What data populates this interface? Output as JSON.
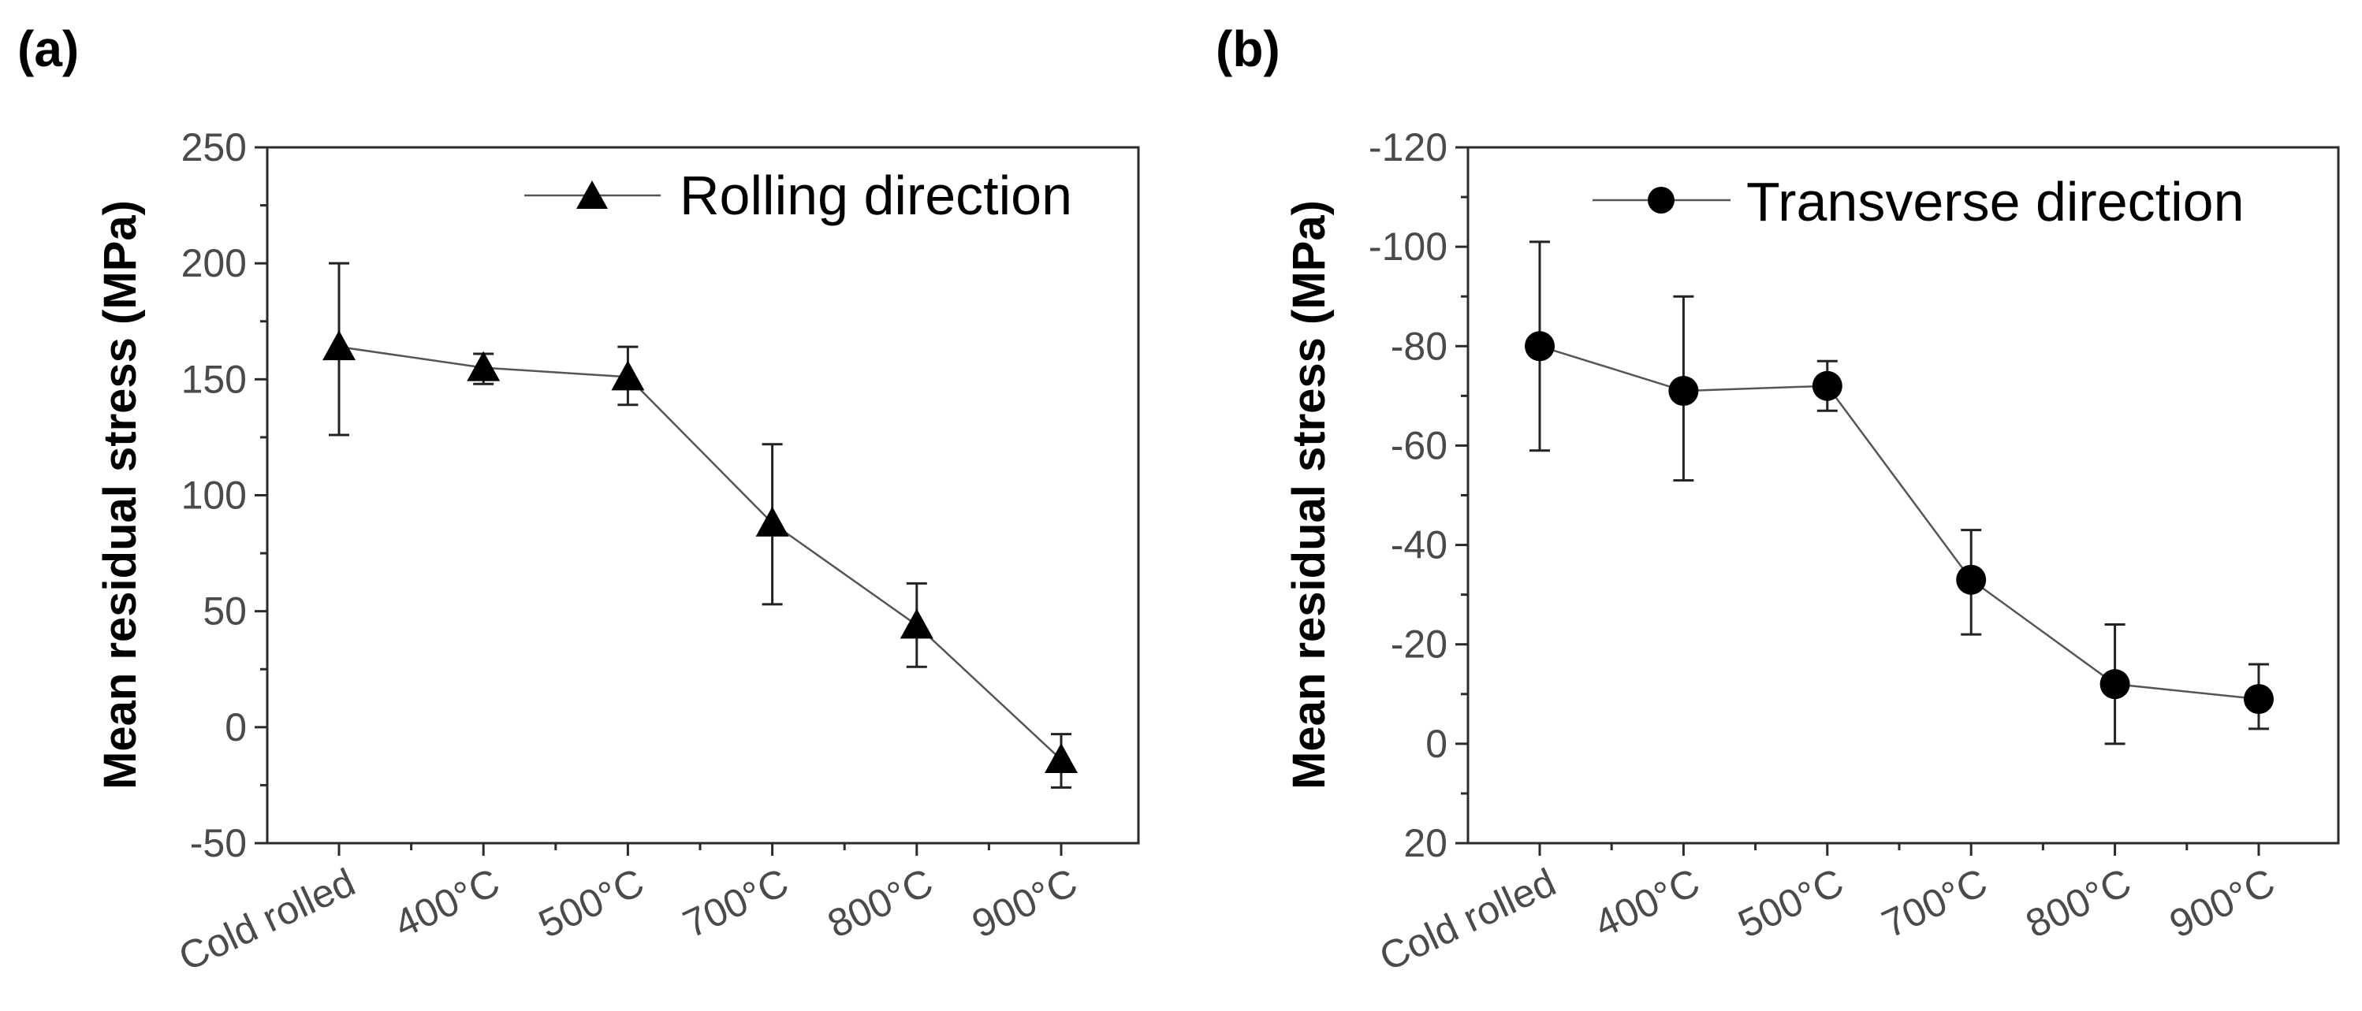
{
  "chart_data": [
    {
      "type": "line",
      "panel_label": "(a)",
      "title": "",
      "categories": [
        "Cold rolled",
        "400°C",
        "500°C",
        "700°C",
        "800°C",
        "900°C"
      ],
      "series": [
        {
          "name": "Rolling direction",
          "marker": "triangle",
          "values": [
            164,
            155,
            151,
            88,
            44,
            -14
          ],
          "err_low": [
            126,
            148,
            139,
            53,
            26,
            -26
          ],
          "err_high": [
            200,
            161,
            164,
            122,
            62,
            -3
          ]
        }
      ],
      "xlabel": "",
      "ylabel": "Mean residual stress (MPa)",
      "ylim": [
        -50,
        250
      ],
      "yticks": [
        250,
        200,
        150,
        100,
        50,
        0,
        -50
      ],
      "y_inverted": false,
      "legend": "top-right",
      "grid": false
    },
    {
      "type": "line",
      "panel_label": "(b)",
      "title": "",
      "categories": [
        "Cold rolled",
        "400°C",
        "500°C",
        "700°C",
        "800°C",
        "900°C"
      ],
      "series": [
        {
          "name": "Transverse direction",
          "marker": "circle",
          "values": [
            -80,
            -71,
            -72,
            -33,
            -12,
            -9
          ],
          "err_low": [
            -59,
            -53,
            -67,
            -22,
            0,
            -3
          ],
          "err_high": [
            -101,
            -90,
            -77,
            -43,
            -24,
            -16
          ]
        }
      ],
      "xlabel": "",
      "ylabel": "Mean residual stress (MPa)",
      "ylim": [
        -120,
        20
      ],
      "yticks": [
        -120,
        -100,
        -80,
        -60,
        -40,
        -20,
        0,
        20
      ],
      "y_inverted": true,
      "legend": "top-right",
      "grid": false
    }
  ]
}
